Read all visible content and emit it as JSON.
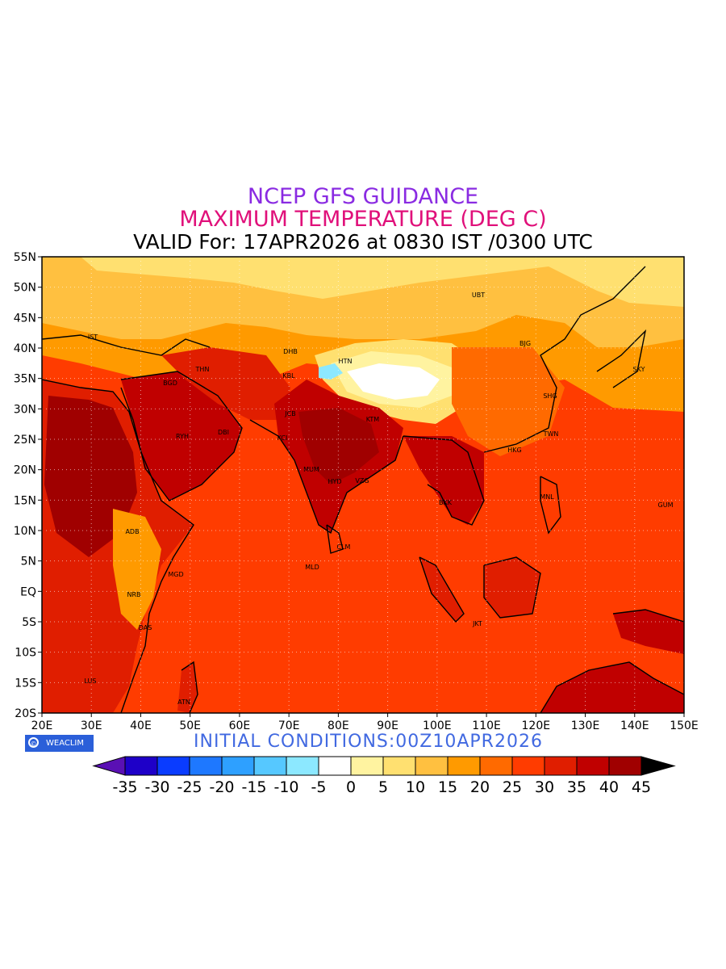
{
  "header": {
    "title": "NCEP GFS GUIDANCE",
    "subtitle": "MAXIMUM TEMPERATURE (DEG C)",
    "valid": "VALID For: 17APR2026 at 0830 IST /0300 UTC"
  },
  "colors": {
    "title": "#8a2be2",
    "subtitle": "#e0107a",
    "initial": "#4169e1",
    "badge": "#2b5fd9"
  },
  "map": {
    "lat_ticks": [
      "55N",
      "50N",
      "45N",
      "40N",
      "35N",
      "30N",
      "25N",
      "20N",
      "15N",
      "10N",
      "5N",
      "EQ",
      "5S",
      "10S",
      "15S",
      "20S"
    ],
    "lon_ticks": [
      "20E",
      "30E",
      "40E",
      "50E",
      "60E",
      "70E",
      "80E",
      "90E",
      "100E",
      "110E",
      "120E",
      "130E",
      "140E",
      "150E"
    ],
    "city_labels": [
      "UBT",
      "BJG",
      "SKY",
      "SHG",
      "TWN",
      "HKG",
      "MNL",
      "GUM",
      "HTN",
      "DHB",
      "KBL",
      "THN",
      "BGD",
      "RYH",
      "DBI",
      "KCI",
      "JCB",
      "MUM",
      "HYD",
      "VZG",
      "KTM",
      "BKK",
      "CLM",
      "MLD",
      "JKT",
      "ADB",
      "NRB",
      "MGD",
      "DAS",
      "LUS",
      "ATN",
      "IST"
    ],
    "fill_layers": [
      "africa",
      "africa-hot",
      "arabia",
      "arabia-hot",
      "india",
      "india-hot",
      "seasia",
      "seasia-hot",
      "borneo",
      "newguinea",
      "australia",
      "eurasia-north",
      "central-asia",
      "tibet",
      "tibet-snow"
    ]
  },
  "footer": {
    "badge_text": "WEACLIM",
    "badge_icon": "copyright-circle-icon",
    "initial_conditions": "INITIAL  CONDITIONS:00Z10APR2026"
  },
  "legend": {
    "labels": [
      "-35",
      "-30",
      "-25",
      "-20",
      "-15",
      "-10",
      "-5",
      "0",
      "5",
      "10",
      "15",
      "20",
      "25",
      "30",
      "35",
      "40",
      "45"
    ],
    "colors": [
      "#1e00c8",
      "#0a3cff",
      "#1e78ff",
      "#2ea0ff",
      "#56c8ff",
      "#8ce8ff",
      "#ffffff",
      "#fff3a0",
      "#ffe070",
      "#ffc040",
      "#ff9a00",
      "#ff6a00",
      "#ff3c00",
      "#e01e00",
      "#c00000",
      "#a00000"
    ],
    "under_color": "#5a10b4",
    "over_color": "#000000"
  }
}
